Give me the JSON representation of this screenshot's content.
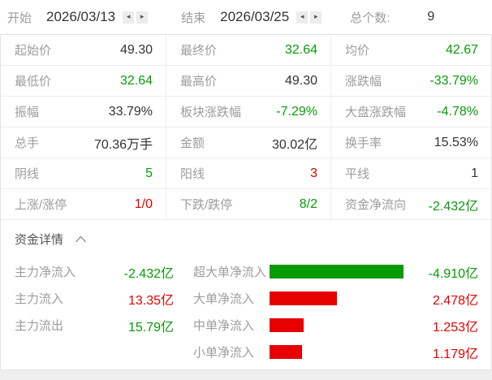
{
  "colors": {
    "green": "#089b08",
    "red": "#e60000",
    "dark": "#333333",
    "label": "#9c9c9c"
  },
  "header": {
    "start_label": "开始",
    "start_date": "2026/03/13",
    "end_label": "结束",
    "end_date": "2026/03/25",
    "total_label": "总个数:",
    "total_value": "9",
    "prev_icon": "◂",
    "next_icon": "▸"
  },
  "stats_table": {
    "rows": [
      {
        "cells": [
          {
            "label": "起始价",
            "value": "49.30",
            "color": "dark"
          },
          {
            "label": "最终价",
            "value": "32.64",
            "color": "green"
          },
          {
            "label": "均价",
            "value": "42.67",
            "color": "green"
          }
        ]
      },
      {
        "cells": [
          {
            "label": "最低价",
            "value": "32.64",
            "color": "green"
          },
          {
            "label": "最高价",
            "value": "49.30",
            "color": "dark"
          },
          {
            "label": "涨跌幅",
            "value": "-33.79%",
            "color": "green"
          }
        ]
      },
      {
        "cells": [
          {
            "label": "振幅",
            "value": "33.79%",
            "color": "dark"
          },
          {
            "label": "板块涨跌幅",
            "value": "-7.29%",
            "color": "green"
          },
          {
            "label": "大盘涨跌幅",
            "value": "-4.78%",
            "color": "green"
          }
        ]
      },
      {
        "cells": [
          {
            "label": "总手",
            "value": "70.36万手",
            "color": "dark"
          },
          {
            "label": "金额",
            "value": "30.02亿",
            "color": "dark"
          },
          {
            "label": "换手率",
            "value": "15.53%",
            "color": "dark"
          }
        ]
      },
      {
        "cells": [
          {
            "label": "阴线",
            "value": "5",
            "color": "green"
          },
          {
            "label": "阳线",
            "value": "3",
            "color": "red"
          },
          {
            "label": "平线",
            "value": "1",
            "color": "dark"
          }
        ]
      },
      {
        "cells": [
          {
            "label": "上涨/涨停",
            "value": "1/0",
            "color": "red"
          },
          {
            "label": "下跌/跌停",
            "value": "8/2",
            "color": "green"
          },
          {
            "label": "资金净流向",
            "value": "-2.432亿",
            "color": "green"
          }
        ]
      }
    ]
  },
  "fund_details": {
    "title": "资金详情",
    "bar_max": 4.91,
    "left_rows": [
      {
        "label": "主力净流入",
        "value": "-2.432亿",
        "color": "green"
      },
      {
        "label": "主力流入",
        "value": "13.35亿",
        "color": "red"
      },
      {
        "label": "主力流出",
        "value": "15.79亿",
        "color": "green"
      }
    ],
    "bar_rows": [
      {
        "label": "超大单净流入",
        "value": "-4.910亿",
        "color": "green",
        "bar_color": "green",
        "value_abs": 4.91
      },
      {
        "label": "大单净流入",
        "value": "2.478亿",
        "color": "red",
        "bar_color": "red",
        "value_abs": 2.478
      },
      {
        "label": "中单净流入",
        "value": "1.253亿",
        "color": "red",
        "bar_color": "red",
        "value_abs": 1.253
      },
      {
        "label": "小单净流入",
        "value": "1.179亿",
        "color": "red",
        "bar_color": "red",
        "value_abs": 1.179
      }
    ]
  }
}
